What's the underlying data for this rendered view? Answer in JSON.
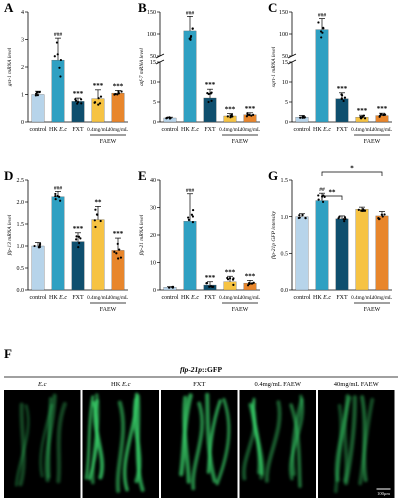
{
  "colors": {
    "control": "#b7d4ea",
    "hk": "#2fa0c2",
    "fxt": "#0f4f6e",
    "low": "#f6c343",
    "high": "#e8862c",
    "gfp": "#39d26a"
  },
  "chart_data": [
    {
      "panel": "A",
      "type": "bar",
      "categories": [
        "control",
        "HK E.c",
        "FXT",
        "0.4mg/mL",
        "40mg/mL"
      ],
      "group_label": "FAEW",
      "ylabel": "gst-1 mRNA level",
      "ylim": [
        0,
        4
      ],
      "yticks": [
        "0",
        "1",
        "2",
        "3",
        "4"
      ],
      "values": [
        1.0,
        2.25,
        0.75,
        0.85,
        1.05
      ],
      "errors": [
        0.12,
        0.8,
        0.12,
        0.32,
        0.1
      ],
      "annotations": [
        "",
        "###",
        "***",
        "***",
        "***"
      ]
    },
    {
      "panel": "B",
      "type": "bar",
      "broken_axis": true,
      "categories": [
        "control",
        "HK E.c",
        "FXT",
        "0.4mg/mL",
        "40mg/mL"
      ],
      "group_label": "FAEW",
      "ylabel": "atf-7 mRNA level",
      "ylim": [
        0,
        150
      ],
      "yticks": [
        "0",
        "5",
        "10",
        "15",
        "50",
        "100",
        "150"
      ],
      "values": [
        1.0,
        107,
        6.0,
        1.5,
        1.8
      ],
      "errors": [
        0.2,
        33,
        2.2,
        0.6,
        0.5
      ],
      "annotations": [
        "",
        "###",
        "***",
        "***",
        "***"
      ]
    },
    {
      "panel": "C",
      "type": "bar",
      "broken_axis": true,
      "categories": [
        "control",
        "HK E.c",
        "FXT",
        "0.4mg/mL",
        "40mg/mL"
      ],
      "group_label": "FAEW",
      "ylabel": "sqrt-1 mRNA level",
      "ylim": [
        0,
        150
      ],
      "yticks": [
        "0",
        "5",
        "10",
        "15",
        "50",
        "100",
        "150"
      ],
      "values": [
        1.2,
        110,
        5.8,
        1.2,
        1.6
      ],
      "errors": [
        0.4,
        25,
        1.5,
        0.5,
        0.6
      ],
      "annotations": [
        "",
        "###",
        "***",
        "***",
        "***"
      ]
    },
    {
      "panel": "D",
      "type": "bar",
      "categories": [
        "control",
        "HK E.c",
        "FXT",
        "0.4mg/mL",
        "40mg/mL"
      ],
      "group_label": "FAEW",
      "ylabel": "flp-13 mRNA level",
      "ylim": [
        0,
        2.5
      ],
      "yticks": [
        "0.0",
        "0.5",
        "1.0",
        "1.5",
        "2.0",
        "2.5"
      ],
      "values": [
        1.0,
        2.12,
        1.1,
        1.6,
        0.9
      ],
      "errors": [
        0.08,
        0.12,
        0.2,
        0.3,
        0.28
      ],
      "annotations": [
        "",
        "###",
        "***",
        "**",
        "***"
      ]
    },
    {
      "panel": "E",
      "type": "bar",
      "categories": [
        "control",
        "HK E.c",
        "FXT",
        "0.4mg/mL",
        "40mg/mL"
      ],
      "group_label": "FAEW",
      "ylabel": "flp-21 mRNA level",
      "ylim": [
        0,
        40
      ],
      "yticks": [
        "0",
        "10",
        "20",
        "30",
        "40"
      ],
      "values": [
        1.0,
        25,
        1.8,
        3.0,
        2.5
      ],
      "errors": [
        0.2,
        10,
        1.2,
        2.0,
        1.0
      ],
      "annotations": [
        "",
        "###",
        "***",
        "***",
        "***"
      ]
    },
    {
      "panel": "G",
      "type": "bar",
      "categories": [
        "control",
        "HK E.c",
        "FXT",
        "0.4mg/mL",
        "40mg/mL"
      ],
      "group_label": "FAEW",
      "ylabel": "flp-21p GFP intensity",
      "ylim": [
        0,
        1.5
      ],
      "yticks": [
        "0.0",
        "0.5",
        "1.0",
        "1.5"
      ],
      "values": [
        1.0,
        1.22,
        0.97,
        1.1,
        1.01
      ],
      "errors": [
        0.04,
        0.1,
        0.04,
        0.03,
        0.06
      ],
      "annotations": [
        "",
        "##",
        "",
        "",
        ""
      ],
      "brackets": [
        {
          "from": 1,
          "to": 2,
          "label": "**"
        },
        {
          "from": 1,
          "to": 4,
          "label": "*"
        }
      ]
    }
  ],
  "panel_f": {
    "panel": "F",
    "title_gene": "flp-21p",
    "title_suffix": "::GFP",
    "labels": [
      "E.c",
      "HK E.c",
      "FXT",
      "0.4mg/mL FAEW",
      "40mg/mL FAEW"
    ],
    "scale_bar": "100μm"
  }
}
